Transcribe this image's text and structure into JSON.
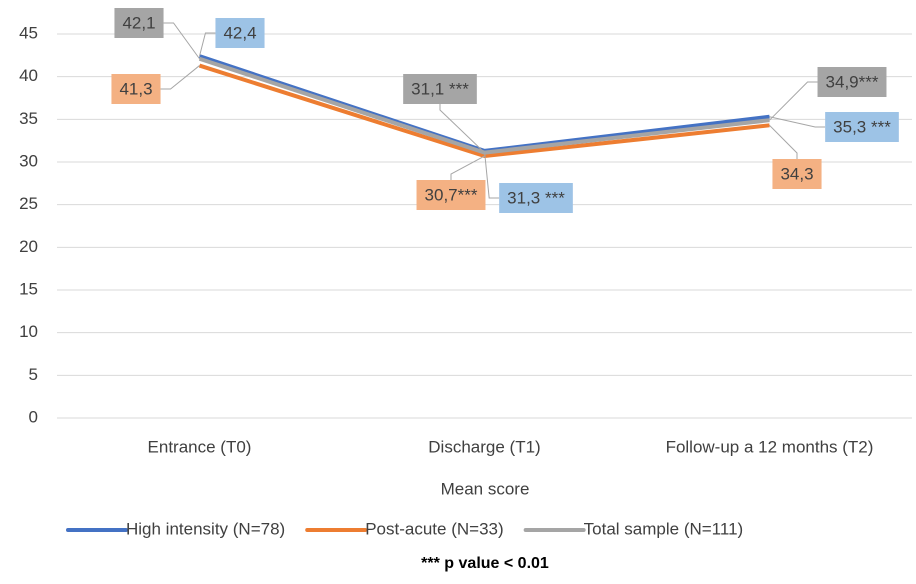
{
  "chart_data": {
    "type": "line",
    "categories": [
      "Entrance (T0)",
      "Discharge (T1)",
      "Follow-up a 12 months (T2)"
    ],
    "series": [
      {
        "name": "High intensity (N=78)",
        "color": "#4472c4",
        "label_fill": "#9dc3e6",
        "values": [
          42.4,
          31.3,
          35.3
        ],
        "value_labels": [
          "42,4",
          "31,3 ***",
          "35,3 ***"
        ]
      },
      {
        "name": "Post-acute (N=33)",
        "color": "#ed7d31",
        "label_fill": "#f4b183",
        "values": [
          41.3,
          30.7,
          34.3
        ],
        "value_labels": [
          "41,3",
          "30,7***",
          "34,3"
        ]
      },
      {
        "name": "Total sample (N=111)",
        "color": "#a5a5a5",
        "label_fill": "#a5a5a5",
        "values": [
          42.1,
          31.1,
          34.9
        ],
        "value_labels": [
          "42,1",
          "31,1 ***",
          "34,9***"
        ]
      }
    ],
    "xlabel": "Mean score",
    "note": "*** p value < 0.01",
    "ylim": [
      0,
      45
    ],
    "yticks": [
      0,
      5,
      10,
      15,
      20,
      25,
      30,
      35,
      40,
      45
    ],
    "grid": true,
    "legend": "bottom"
  }
}
